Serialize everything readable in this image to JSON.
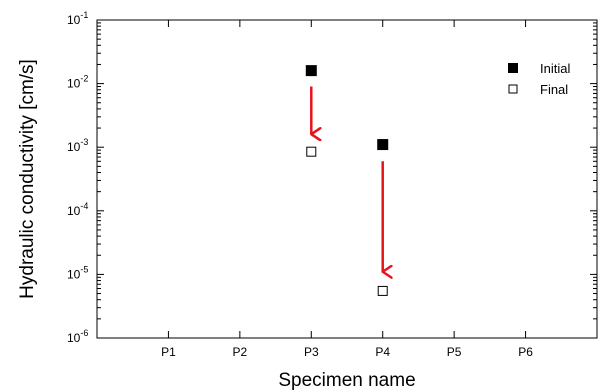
{
  "chart_data": {
    "type": "scatter",
    "xlabel": "Specimen name",
    "ylabel": "Hydraulic conductivity [cm/s]",
    "categories": [
      "P1",
      "P2",
      "P3",
      "P4",
      "P5",
      "P6"
    ],
    "xlim": [
      0,
      7
    ],
    "y_scale": "log",
    "ylim": [
      1e-06,
      0.1
    ],
    "y_tick_labels": [
      {
        "base": "10",
        "exp": "-6"
      },
      {
        "base": "10",
        "exp": "-5"
      },
      {
        "base": "10",
        "exp": "-4"
      },
      {
        "base": "10",
        "exp": "-3"
      },
      {
        "base": "10",
        "exp": "-2"
      },
      {
        "base": "10",
        "exp": "-1"
      }
    ],
    "series": [
      {
        "name": "Initial",
        "marker": "filled-square",
        "points": [
          {
            "x": "P3",
            "y": 0.016
          },
          {
            "x": "P4",
            "y": 0.0011
          }
        ]
      },
      {
        "name": "Final",
        "marker": "open-square",
        "points": [
          {
            "x": "P3",
            "y": 0.00085
          },
          {
            "x": "P4",
            "y": 5.5e-06
          }
        ]
      }
    ],
    "annotations": [
      {
        "type": "arrow",
        "x": "P3",
        "from_y": 0.009,
        "to_y": 0.0016
      },
      {
        "type": "arrow",
        "x": "P4",
        "from_y": 0.0006,
        "to_y": 1.1e-05
      }
    ],
    "legend_position": "top-right",
    "grid": false,
    "arrow_color": "#e8141c"
  }
}
